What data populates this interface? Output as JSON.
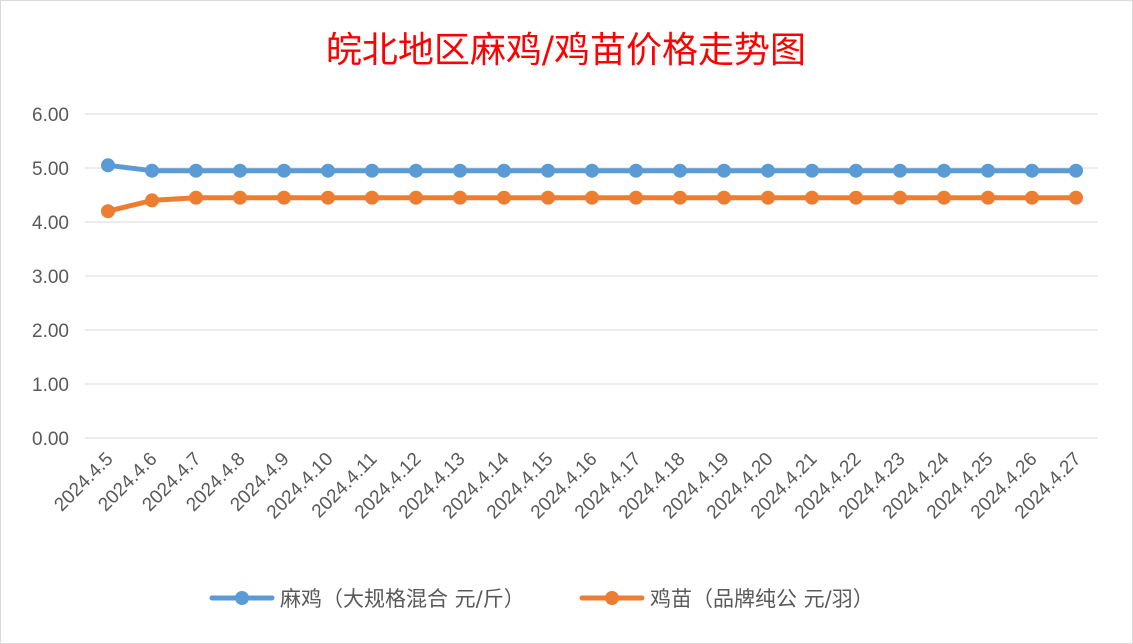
{
  "chart_data": {
    "type": "line",
    "title": "皖北地区麻鸡/鸡苗价格走势图",
    "xlabel": "",
    "ylabel": "",
    "ylim": [
      0,
      6
    ],
    "yticks": [
      "0.00",
      "1.00",
      "2.00",
      "3.00",
      "4.00",
      "5.00",
      "6.00"
    ],
    "grid": true,
    "legend_position": "bottom",
    "categories": [
      "2024.4.5",
      "2024.4.6",
      "2024.4.7",
      "2024.4.8",
      "2024.4.9",
      "2024.4.10",
      "2024.4.11",
      "2024.4.12",
      "2024.4.13",
      "2024.4.14",
      "2024.4.15",
      "2024.4.16",
      "2024.4.17",
      "2024.4.18",
      "2024.4.19",
      "2024.4.20",
      "2024.4.21",
      "2024.4.22",
      "2024.4.23",
      "2024.4.24",
      "2024.4.25",
      "2024.4.26",
      "2024.4.27"
    ],
    "series": [
      {
        "name": "麻鸡（大规格混合 元/斤）",
        "color": "#5b9bd5",
        "values": [
          5.05,
          4.95,
          4.95,
          4.95,
          4.95,
          4.95,
          4.95,
          4.95,
          4.95,
          4.95,
          4.95,
          4.95,
          4.95,
          4.95,
          4.95,
          4.95,
          4.95,
          4.95,
          4.95,
          4.95,
          4.95,
          4.95,
          4.95
        ]
      },
      {
        "name": "鸡苗（品牌纯公 元/羽）",
        "color": "#ed7d31",
        "values": [
          4.2,
          4.4,
          4.45,
          4.45,
          4.45,
          4.45,
          4.45,
          4.45,
          4.45,
          4.45,
          4.45,
          4.45,
          4.45,
          4.45,
          4.45,
          4.45,
          4.45,
          4.45,
          4.45,
          4.45,
          4.45,
          4.45,
          4.45
        ]
      }
    ]
  }
}
